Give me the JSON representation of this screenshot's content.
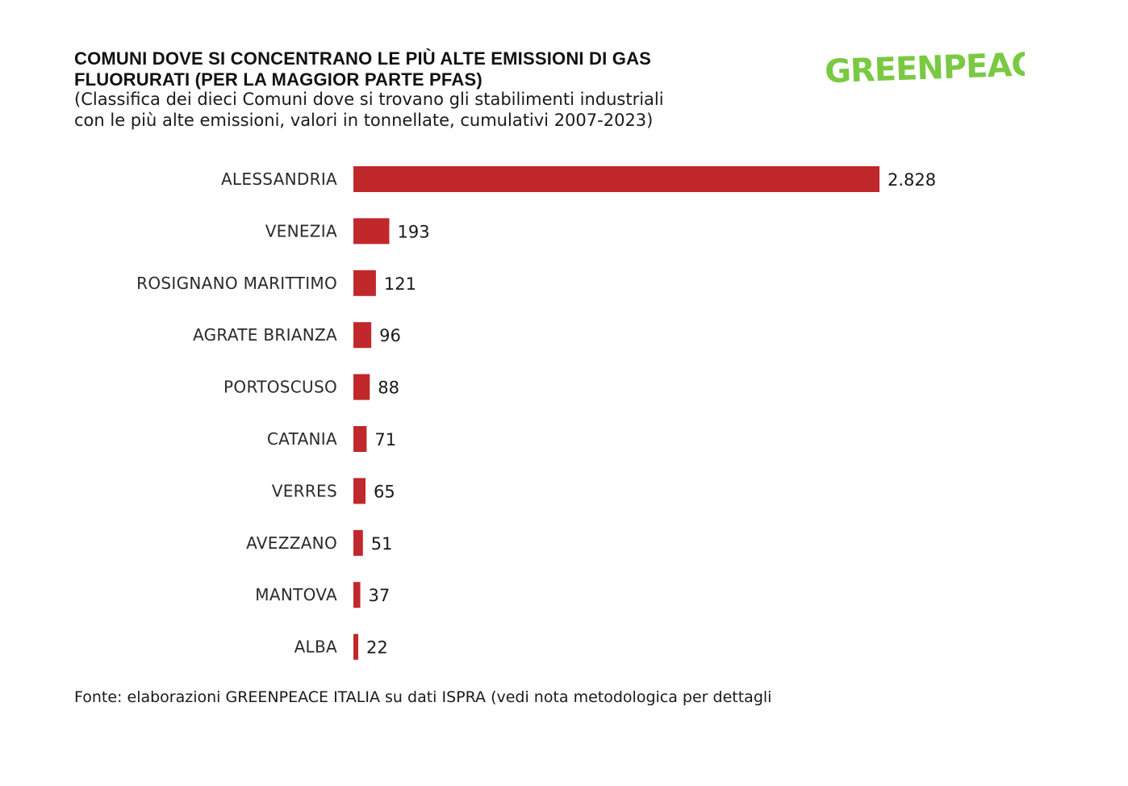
{
  "header": {
    "title_line1": "COMUNI DOVE SI CONCENTRANO LE PIÙ ALTE EMISSIONI DI GAS",
    "title_line2": "FLUORURATI (PER LA MAGGIOR PARTE PFAS)",
    "subtitle_line1": "(Classifica dei dieci Comuni dove si trovano gli stabilimenti industriali",
    "subtitle_line2": "con le più alte emissioni, valori in tonnellate, cumulativi 2007-2023)"
  },
  "logo": {
    "text": "GREENPEACE",
    "color": "#7ac943"
  },
  "source": {
    "text": "Fonte: elaborazioni GREENPEACE ITALIA su dati ISPRA (vedi nota metodologica per dettagli"
  },
  "colors": {
    "bar": "#c0282b"
  },
  "chart_data": {
    "type": "bar",
    "orientation": "horizontal",
    "title": "COMUNI DOVE SI CONCENTRANO LE PIÙ ALTE EMISSIONI DI GAS FLUORURATI (PER LA MAGGIOR PARTE PFAS)",
    "xlabel": "",
    "ylabel": "",
    "grid": false,
    "categories": [
      "ALESSANDRIA",
      "VENEZIA",
      "ROSIGNANO MARITTIMO",
      "AGRATE BRIANZA",
      "PORTOSCUSO",
      "CATANIA",
      "VERRES",
      "AVEZZANO",
      "MANTOVA",
      "ALBA"
    ],
    "values": [
      2828,
      193,
      121,
      96,
      88,
      71,
      65,
      51,
      37,
      22
    ],
    "value_labels": [
      "2.828",
      "193",
      "121",
      "96",
      "88",
      "71",
      "65",
      "51",
      "37",
      "22"
    ],
    "xlim": [
      0,
      2828
    ]
  }
}
